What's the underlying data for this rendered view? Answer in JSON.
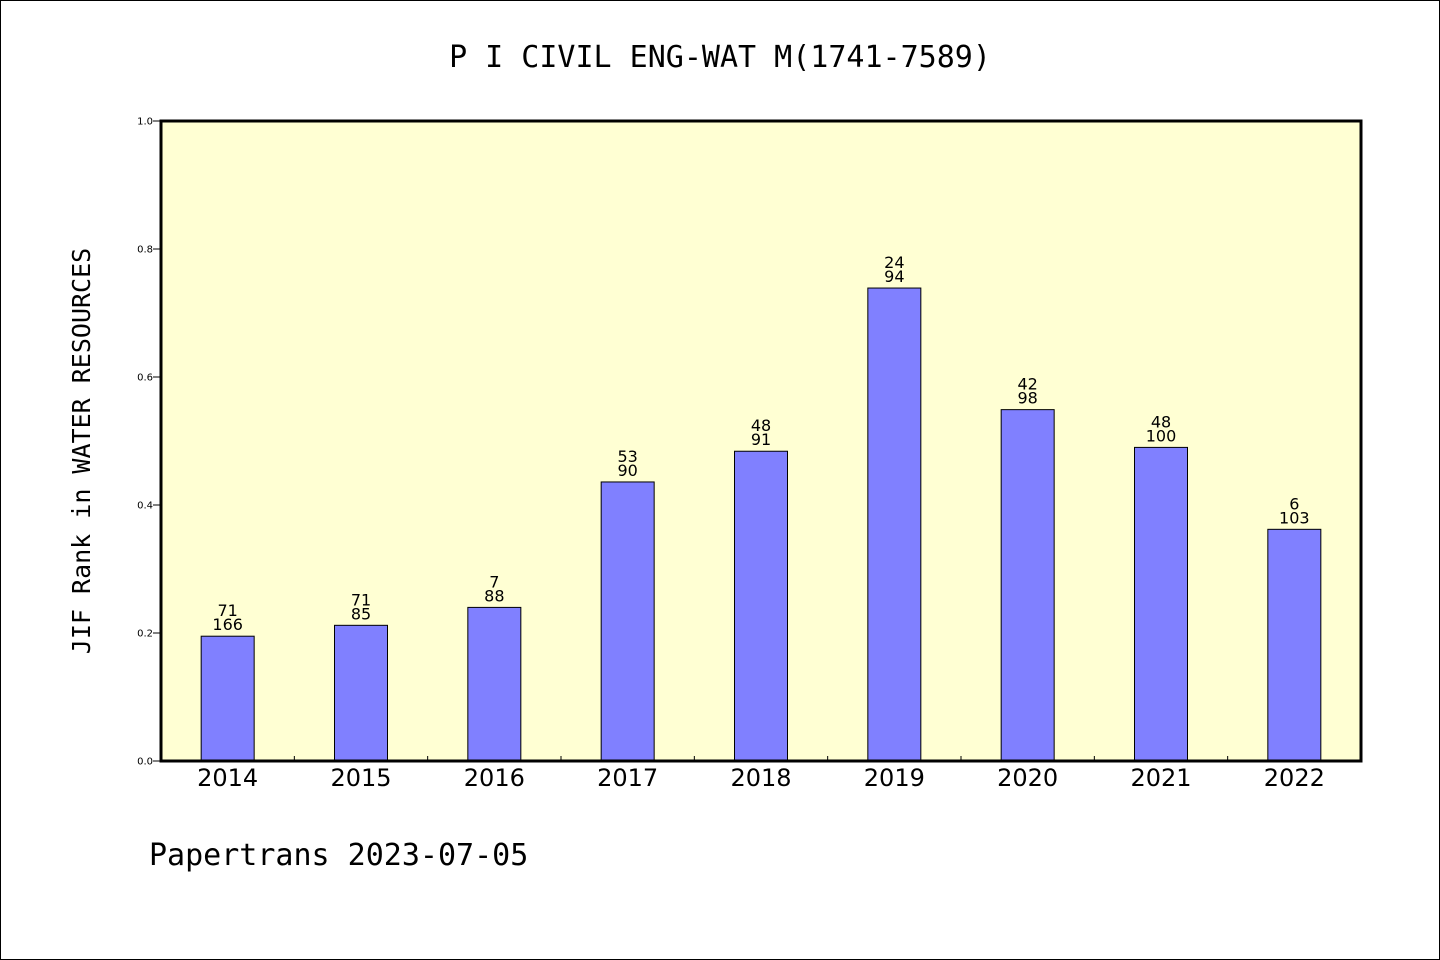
{
  "chart_data": {
    "type": "bar",
    "title": "P I CIVIL ENG-WAT M(1741-7589)",
    "ylabel": "JIF Rank in WATER RESOURCES",
    "xlabel": "",
    "ylim": [
      0,
      1.0
    ],
    "yticks": [
      "0.0",
      "0.2",
      "0.4",
      "0.6",
      "0.8",
      "1.0"
    ],
    "categories": [
      "2014",
      "2015",
      "2016",
      "2017",
      "2018",
      "2019",
      "2020",
      "2021",
      "2022"
    ],
    "values": [
      0.195,
      0.212,
      0.24,
      0.436,
      0.484,
      0.739,
      0.549,
      0.49,
      0.362
    ],
    "rank_labels": [
      "71",
      "71",
      "7",
      "53",
      "48",
      "24",
      "42",
      "48",
      "6"
    ],
    "total_labels": [
      "166",
      "85",
      "88",
      "90",
      "91",
      "94",
      "98",
      "100",
      "103"
    ],
    "grid": false,
    "legend": "none",
    "colors": {
      "plot_background": "#ffffd3",
      "bar_fill": "#8080ff",
      "bar_stroke": "#000000",
      "axis": "#000000"
    }
  },
  "footer": "Papertrans 2023-07-05"
}
